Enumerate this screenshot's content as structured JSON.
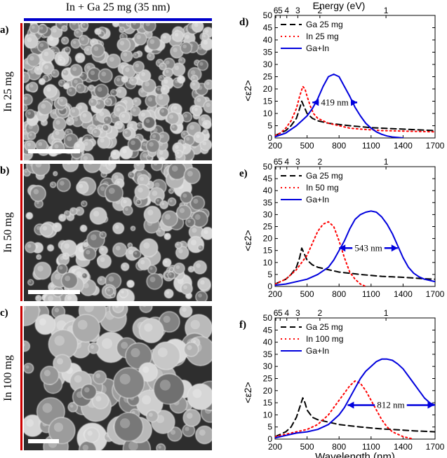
{
  "header": {
    "title": "In + Ga 25 mg (35 nm)",
    "color": "#0000cc"
  },
  "sem": {
    "bar_color": "#cc0000",
    "panels": [
      {
        "label": "a)",
        "row_label": "In  25 mg"
      },
      {
        "label": "b)",
        "row_label": "In  50 mg"
      },
      {
        "label": "c)",
        "row_label": "In  100 mg"
      }
    ]
  },
  "colors": {
    "ga": "#000000",
    "in": "#ff0000",
    "gain": "#0000dd",
    "arrow": "#0000dd"
  },
  "chart_data": [
    {
      "type": "line",
      "label": "d)",
      "xlabel": "",
      "ylabel": "<ε2>",
      "top_label": "Energy (eV)",
      "xlim": [
        200,
        1700
      ],
      "ylim": [
        0,
        50
      ],
      "xticks": [
        200,
        500,
        800,
        1100,
        1400,
        1700
      ],
      "yticks": [
        0,
        5,
        10,
        15,
        20,
        25,
        30,
        35,
        40,
        45,
        50
      ],
      "energy_ticks": [
        {
          "label": "6",
          "wl": 207
        },
        {
          "label": "5",
          "wl": 248
        },
        {
          "label": "4",
          "wl": 310
        },
        {
          "label": "3",
          "wl": 413
        },
        {
          "label": "2",
          "wl": 620
        },
        {
          "label": "1",
          "wl": 1240
        }
      ],
      "annotation": {
        "text": "419 nm",
        "from": 550,
        "to": 970,
        "y": 14.5
      },
      "series": [
        {
          "name": "Ga 25 mg",
          "key": "ga",
          "x": [
            200,
            250,
            300,
            350,
            400,
            430,
            450,
            470,
            500,
            550,
            600,
            700,
            800,
            900,
            1000,
            1100,
            1200,
            1300,
            1400,
            1500,
            1600,
            1700
          ],
          "y": [
            1,
            2,
            3,
            5,
            8,
            12,
            15,
            13,
            10,
            8,
            7,
            6,
            5.5,
            5,
            4.6,
            4.2,
            4,
            3.8,
            3.6,
            3.4,
            3.2,
            3
          ]
        },
        {
          "name": "In 25 mg",
          "key": "in",
          "x": [
            200,
            250,
            300,
            350,
            400,
            430,
            460,
            480,
            500,
            530,
            560,
            600,
            700,
            800,
            900,
            1000,
            1100,
            1200,
            1300,
            1400,
            1500,
            1600,
            1700
          ],
          "y": [
            1,
            2,
            4,
            7,
            12,
            17,
            21,
            20,
            17,
            13,
            10,
            8,
            6,
            5,
            4,
            3.6,
            3.3,
            3,
            2.9,
            2.8,
            2.7,
            2.6,
            2.5
          ]
        },
        {
          "name": "Ga+In",
          "key": "gain",
          "x": [
            200,
            300,
            400,
            500,
            550,
            600,
            650,
            700,
            750,
            800,
            850,
            900,
            950,
            1000,
            1050,
            1100,
            1150,
            1200,
            1250,
            1300,
            1350,
            1400
          ],
          "y": [
            0.5,
            2,
            5,
            9,
            12,
            16,
            21,
            25,
            26,
            25,
            21,
            17,
            12.5,
            9,
            6,
            4,
            2.5,
            1.5,
            0.8,
            0.4,
            0.2,
            0
          ]
        }
      ]
    },
    {
      "type": "line",
      "label": "e)",
      "xlabel": "",
      "ylabel": "<ε2>",
      "top_label": "",
      "xlim": [
        200,
        1700
      ],
      "ylim": [
        0,
        50
      ],
      "xticks": [
        200,
        500,
        800,
        1100,
        1400,
        1700
      ],
      "yticks": [
        0,
        5,
        10,
        15,
        20,
        25,
        30,
        35,
        40,
        45,
        50
      ],
      "energy_ticks": [
        {
          "label": "6",
          "wl": 207
        },
        {
          "label": "5",
          "wl": 248
        },
        {
          "label": "4",
          "wl": 310
        },
        {
          "label": "3",
          "wl": 413
        },
        {
          "label": "2",
          "wl": 620
        },
        {
          "label": "1",
          "wl": 1240
        }
      ],
      "annotation": {
        "text": "543 nm",
        "from": 800,
        "to": 1350,
        "y": 16
      },
      "series": [
        {
          "name": "Ga 25 mg",
          "key": "ga",
          "x": [
            200,
            250,
            300,
            350,
            400,
            430,
            450,
            470,
            500,
            550,
            600,
            700,
            800,
            900,
            1000,
            1100,
            1200,
            1300,
            1400,
            1500,
            1600,
            1700
          ],
          "y": [
            1,
            2,
            3,
            5,
            8,
            12,
            16,
            14,
            11,
            9,
            8,
            7,
            6,
            5.5,
            5,
            4.6,
            4.2,
            4,
            3.8,
            3.5,
            3.2,
            3
          ]
        },
        {
          "name": "In 50 mg",
          "key": "in",
          "x": [
            200,
            300,
            400,
            500,
            550,
            600,
            650,
            700,
            750,
            800,
            850,
            900,
            950,
            1000,
            1050
          ],
          "y": [
            1,
            3,
            7,
            13,
            18,
            23,
            26,
            27,
            25,
            19,
            12,
            6,
            3,
            1,
            0
          ]
        },
        {
          "name": "Ga+In",
          "key": "gain",
          "x": [
            200,
            300,
            400,
            500,
            600,
            700,
            750,
            800,
            850,
            900,
            950,
            1000,
            1050,
            1100,
            1150,
            1200,
            1250,
            1300,
            1350,
            1400,
            1450,
            1500,
            1550,
            1600,
            1700
          ],
          "y": [
            0.5,
            1,
            2,
            3,
            5,
            8,
            11,
            15,
            19,
            24,
            28,
            30,
            31,
            31.5,
            31,
            29,
            26,
            22,
            17,
            12,
            8,
            5.5,
            4,
            3,
            2
          ]
        }
      ]
    },
    {
      "type": "line",
      "label": "f)",
      "xlabel": "Wavelength (nm)",
      "ylabel": "<ε2>",
      "top_label": "",
      "xlim": [
        200,
        1700
      ],
      "ylim": [
        0,
        50
      ],
      "xticks": [
        200,
        500,
        800,
        1100,
        1400,
        1700
      ],
      "yticks": [
        0,
        5,
        10,
        15,
        20,
        25,
        30,
        35,
        40,
        45,
        50
      ],
      "energy_ticks": [
        {
          "label": "6",
          "wl": 207
        },
        {
          "label": "5",
          "wl": 248
        },
        {
          "label": "4",
          "wl": 310
        },
        {
          "label": "3",
          "wl": 413
        },
        {
          "label": "2",
          "wl": 620
        },
        {
          "label": "1",
          "wl": 1240
        }
      ],
      "annotation": {
        "text": "812 nm",
        "from": 880,
        "to": 1690,
        "y": 14
      },
      "series": [
        {
          "name": "Ga 25 mg",
          "key": "ga",
          "x": [
            200,
            250,
            300,
            350,
            400,
            430,
            460,
            480,
            500,
            550,
            600,
            700,
            800,
            900,
            1000,
            1100,
            1200,
            1300,
            1400,
            1500,
            1600,
            1700
          ],
          "y": [
            1,
            2,
            3,
            5,
            9,
            13,
            17,
            15,
            12,
            9,
            8,
            7,
            6,
            5.5,
            5,
            4.6,
            4.2,
            4,
            3.7,
            3.4,
            3.2,
            3
          ]
        },
        {
          "name": "In 100 mg",
          "key": "in",
          "x": [
            200,
            300,
            400,
            500,
            600,
            700,
            800,
            850,
            900,
            950,
            1000,
            1050,
            1100,
            1150,
            1200,
            1250,
            1300,
            1400,
            1500
          ],
          "y": [
            1,
            2,
            3,
            4,
            6,
            10,
            16,
            19,
            22,
            24,
            23,
            20,
            16,
            12,
            8,
            5,
            3,
            1,
            0
          ]
        },
        {
          "name": "Ga+In",
          "key": "gain",
          "x": [
            200,
            300,
            350,
            400,
            500,
            600,
            700,
            800,
            850,
            900,
            950,
            1000,
            1050,
            1100,
            1150,
            1200,
            1250,
            1300,
            1350,
            1400,
            1450,
            1500,
            1550,
            1600,
            1650,
            1700
          ],
          "y": [
            0.5,
            1.5,
            2,
            2.5,
            3,
            4,
            6,
            10,
            13,
            17,
            21,
            25,
            28,
            30,
            32,
            33,
            33,
            32.5,
            31,
            29,
            26,
            23,
            20,
            17,
            15,
            14
          ]
        }
      ]
    }
  ]
}
